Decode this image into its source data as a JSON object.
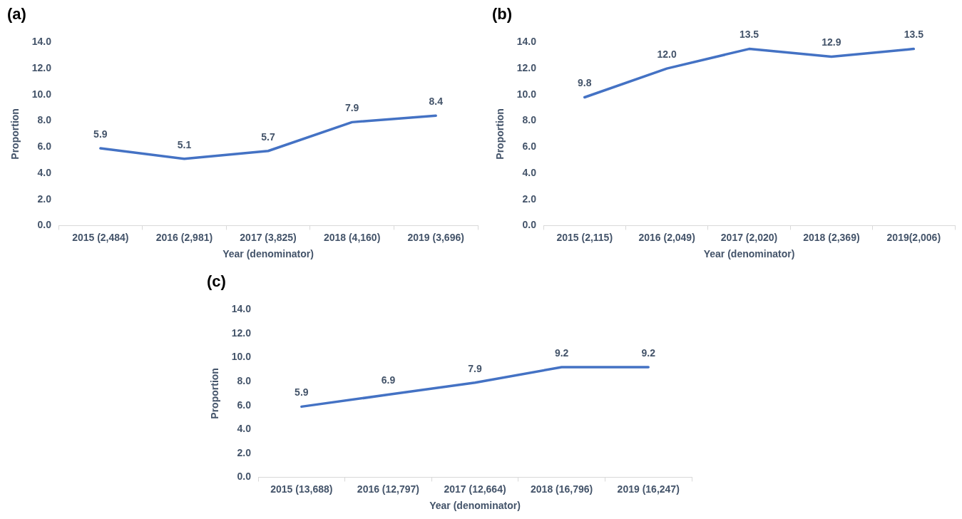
{
  "chart_data": [
    {
      "type": "line",
      "title": "(a)",
      "xlabel": "Year (denominator)",
      "ylabel": "Proportion",
      "categories": [
        "2015 (2,484)",
        "2016 (2,981)",
        "2017 (3,825)",
        "2018 (4,160)",
        "2019 (3,696)"
      ],
      "series": [
        {
          "color": "#4472c4",
          "values": [
            5.9,
            5.1,
            5.7,
            7.9,
            8.4
          ],
          "value_labels": [
            "5.9",
            "5.1",
            "5.7",
            "7.9",
            "8.4"
          ]
        }
      ],
      "ylim": [
        0,
        14
      ],
      "yticks": [
        {
          "value": 0,
          "label": "0.0"
        },
        {
          "value": 2,
          "label": "2.0"
        },
        {
          "value": 4,
          "label": "4.0"
        },
        {
          "value": 6,
          "label": "6.0"
        },
        {
          "value": 8,
          "label": "8.0"
        },
        {
          "value": 10,
          "label": "10.0"
        },
        {
          "value": 12,
          "label": "12.0"
        },
        {
          "value": 14,
          "label": "14.0"
        }
      ],
      "marker": "none",
      "line_style": "solid"
    },
    {
      "type": "line",
      "title": "(b)",
      "xlabel": "Year (denominator)",
      "ylabel": "Proportion",
      "categories": [
        "2015 (2,115)",
        "2016 (2,049)",
        "2017 (2,020)",
        "2018 (2,369)",
        "2019(2,006)"
      ],
      "series": [
        {
          "color": "#4472c4",
          "values": [
            9.8,
            12.0,
            13.5,
            12.9,
            13.5
          ],
          "value_labels": [
            "9.8",
            "12.0",
            "13.5",
            "12.9",
            "13.5"
          ]
        }
      ],
      "ylim": [
        0,
        14
      ],
      "yticks": [
        {
          "value": 0,
          "label": "0.0"
        },
        {
          "value": 2,
          "label": "2.0"
        },
        {
          "value": 4,
          "label": "4.0"
        },
        {
          "value": 6,
          "label": "6.0"
        },
        {
          "value": 8,
          "label": "8.0"
        },
        {
          "value": 10,
          "label": "10.0"
        },
        {
          "value": 12,
          "label": "12.0"
        },
        {
          "value": 14,
          "label": "14.0"
        }
      ],
      "marker": "none",
      "line_style": "solid"
    },
    {
      "type": "line",
      "title": "(c)",
      "xlabel": "Year (denominator)",
      "ylabel": "Proportion",
      "categories": [
        "2015 (13,688)",
        "2016 (12,797)",
        "2017 (12,664)",
        "2018 (16,796)",
        "2019 (16,247)"
      ],
      "series": [
        {
          "color": "#4472c4",
          "values": [
            5.9,
            6.9,
            7.9,
            9.2,
            9.2
          ],
          "value_labels": [
            "5.9",
            "6.9",
            "7.9",
            "9.2",
            "9.2"
          ]
        }
      ],
      "ylim": [
        0,
        14
      ],
      "yticks": [
        {
          "value": 0,
          "label": "0.0"
        },
        {
          "value": 2,
          "label": "2.0"
        },
        {
          "value": 4,
          "label": "4.0"
        },
        {
          "value": 6,
          "label": "6.0"
        },
        {
          "value": 8,
          "label": "8.0"
        },
        {
          "value": 10,
          "label": "10.0"
        },
        {
          "value": 12,
          "label": "12.0"
        },
        {
          "value": 14,
          "label": "14.0"
        }
      ],
      "marker": "none",
      "line_style": "solid"
    }
  ]
}
